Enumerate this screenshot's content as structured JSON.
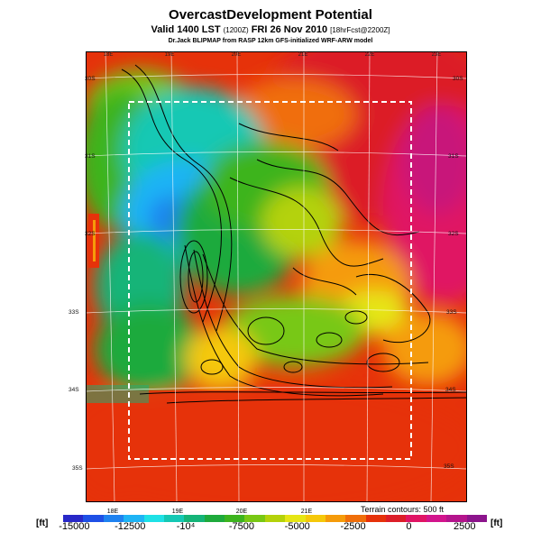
{
  "header": {
    "title": "OvercastDevelopment Potential",
    "subtitle_main": "Valid 1400 LST",
    "subtitle_small1": "(1200Z)",
    "subtitle_mid": "FRI 26 Nov 2010",
    "subtitle_small2": "[18hrFcst@2200Z]",
    "credit": "Dr.Jack BLIPMAP from RASP 12km GFS-initialized WRF-ARW model"
  },
  "map": {
    "longitude_top": [
      "18E",
      "19E",
      "20E",
      "21E",
      "22E",
      "23E"
    ],
    "longitude_bottom": [
      "18E",
      "19E",
      "20E",
      "21E"
    ],
    "latitude_left": [
      "30S",
      "31S",
      "32S",
      "33S",
      "34S",
      "35S"
    ],
    "latitude_right": [
      "30S",
      "31S",
      "32S",
      "33S",
      "34S",
      "35S"
    ],
    "terrain_note": "Terrain contours: 500 ft"
  },
  "colorbar": {
    "unit_left": "[ft]",
    "unit_right": "[ft]",
    "ticks": [
      "-15000",
      "-12500",
      "-10⁴",
      "-7500",
      "-5000",
      "-2500",
      "0",
      "2500"
    ],
    "tick_values": [
      -15000,
      -12500,
      -10000,
      -7500,
      -5000,
      -2500,
      0,
      2500
    ],
    "range": [
      -15500,
      3500
    ],
    "colors": [
      "#2828c8",
      "#1e50e6",
      "#1e82f0",
      "#1eb4f5",
      "#1ee1e6",
      "#14c8b4",
      "#14b478",
      "#1eaa3c",
      "#3cb41e",
      "#78c814",
      "#b4d20a",
      "#e6e614",
      "#f5c80a",
      "#f59b0a",
      "#f06e0a",
      "#e6320a",
      "#dc1e28",
      "#e01464",
      "#d2148c",
      "#b4148c",
      "#8c148c"
    ]
  },
  "colors": {
    "background": "#ffffff",
    "box_dash": "#ffffff",
    "grid": "#ffffff",
    "contour": "#000000"
  }
}
